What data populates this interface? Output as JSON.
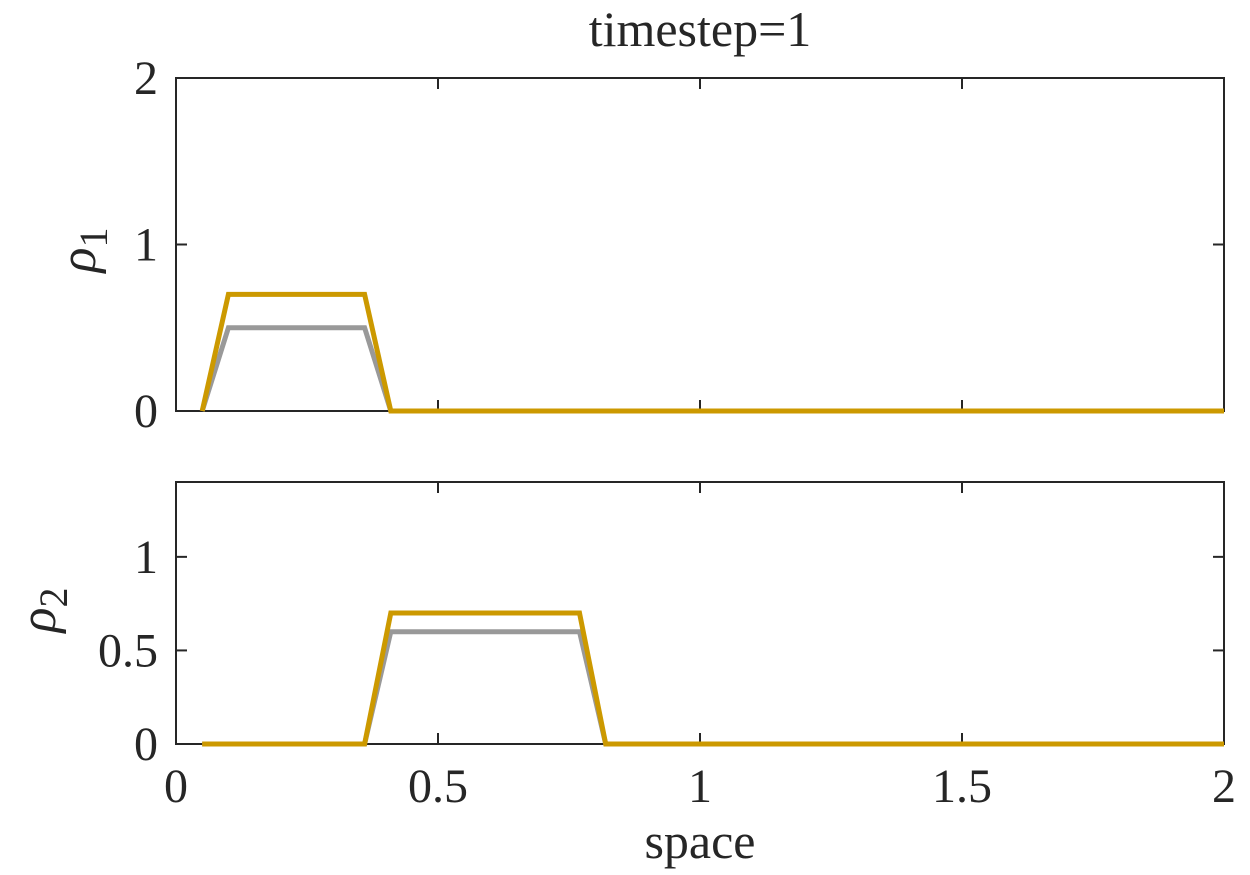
{
  "chart_data": {
    "title": "timestep=1",
    "xlabel": "space",
    "colors": {
      "exact": "#999999",
      "approx": "#cc9900",
      "axes": "#262626"
    },
    "panels": [
      {
        "type": "line",
        "ylabel_symbol": "ρ",
        "ylabel_sub": "1",
        "xlim": [
          0,
          2
        ],
        "ylim": [
          0,
          2
        ],
        "xticks": [
          0,
          0.5,
          1,
          1.5,
          2
        ],
        "yticks": [
          0,
          1,
          2
        ],
        "ytick_labels": [
          "0",
          "1",
          "2"
        ],
        "show_xtick_labels": false,
        "series": [
          {
            "color": "#999999",
            "x": [
              0.05,
              0.1,
              0.36,
              0.41,
              2.0
            ],
            "y": [
              0,
              0.5,
              0.5,
              0,
              0
            ]
          },
          {
            "color": "#cc9900",
            "x": [
              0.05,
              0.1,
              0.36,
              0.41,
              2.0
            ],
            "y": [
              0,
              0.7,
              0.7,
              0,
              0
            ]
          }
        ]
      },
      {
        "type": "line",
        "ylabel_symbol": "ρ",
        "ylabel_sub": "2",
        "xlim": [
          0,
          2
        ],
        "ylim": [
          0,
          1.4
        ],
        "xticks": [
          0,
          0.5,
          1,
          1.5,
          2
        ],
        "xtick_labels": [
          "0",
          "0.5",
          "1",
          "1.5",
          "2"
        ],
        "yticks": [
          0,
          0.5,
          1
        ],
        "ytick_labels": [
          "0",
          "0.5",
          "1"
        ],
        "show_xtick_labels": true,
        "series": [
          {
            "color": "#999999",
            "x": [
              0.05,
              0.36,
              0.41,
              0.77,
              0.82,
              2.0
            ],
            "y": [
              0,
              0,
              0.6,
              0.6,
              0,
              0
            ]
          },
          {
            "color": "#cc9900",
            "x": [
              0.05,
              0.36,
              0.41,
              0.77,
              0.82,
              2.0
            ],
            "y": [
              0,
              0,
              0.7,
              0.7,
              0,
              0
            ]
          }
        ]
      }
    ]
  }
}
